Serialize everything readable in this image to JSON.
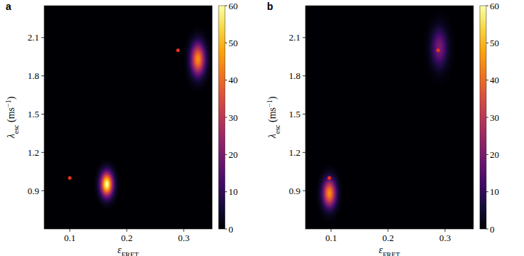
{
  "chart_data": [
    {
      "type": "heatmap",
      "panel_label": "a",
      "x_label": [
        {
          "text": "ε",
          "style": "italic"
        },
        {
          "text": "FRET",
          "style": "sub"
        }
      ],
      "y_label": [
        {
          "text": "λ",
          "style": "italic"
        },
        {
          "text": "esc",
          "style": "sub"
        },
        {
          "text": " (ms",
          "style": "normal"
        },
        {
          "text": "−1",
          "style": "sup"
        },
        {
          "text": ")",
          "style": "normal"
        }
      ],
      "xlim": [
        0.055,
        0.35
      ],
      "ylim": [
        0.6,
        2.35
      ],
      "xticks": [
        0.1,
        0.2,
        0.3
      ],
      "yticks": [
        0.9,
        1.2,
        1.5,
        1.8,
        2.1
      ],
      "peaks": [
        {
          "x": 0.165,
          "y": 0.95,
          "sigma_x": 0.0075,
          "sigma_y": 0.065,
          "value": 60
        },
        {
          "x": 0.325,
          "y": 1.93,
          "sigma_x": 0.0085,
          "sigma_y": 0.085,
          "value": 45
        }
      ],
      "markers": {
        "x": [
          0.1,
          0.29
        ],
        "y": [
          1.0,
          2.0
        ],
        "color": "#e8341c",
        "marker": "circle"
      },
      "colorbar": {
        "range": [
          0,
          60
        ],
        "ticks": [
          0,
          10,
          20,
          30,
          40,
          50,
          60
        ]
      }
    },
    {
      "type": "heatmap",
      "panel_label": "b",
      "x_label": [
        {
          "text": "ε",
          "style": "italic"
        },
        {
          "text": "FRET",
          "style": "sub"
        }
      ],
      "y_label": [
        {
          "text": "λ",
          "style": "italic"
        },
        {
          "text": "esc",
          "style": "sub"
        },
        {
          "text": " (ms",
          "style": "normal"
        },
        {
          "text": "−1",
          "style": "sup"
        },
        {
          "text": ")",
          "style": "normal"
        }
      ],
      "xlim": [
        0.055,
        0.35
      ],
      "ylim": [
        0.6,
        2.35
      ],
      "xticks": [
        0.1,
        0.2,
        0.3
      ],
      "yticks": [
        0.9,
        1.2,
        1.5,
        1.8,
        2.1
      ],
      "peaks": [
        {
          "x": 0.097,
          "y": 0.88,
          "sigma_x": 0.008,
          "sigma_y": 0.075,
          "value": 45
        },
        {
          "x": 0.29,
          "y": 2.02,
          "sigma_x": 0.0095,
          "sigma_y": 0.1,
          "value": 20
        }
      ],
      "markers": {
        "x": [
          0.097,
          0.288
        ],
        "y": [
          1.0,
          2.0
        ],
        "color": "#e8341c",
        "marker": "circle"
      },
      "colorbar": {
        "range": [
          0,
          60
        ],
        "ticks": [
          0,
          10,
          20,
          30,
          40,
          50,
          60
        ]
      }
    }
  ]
}
